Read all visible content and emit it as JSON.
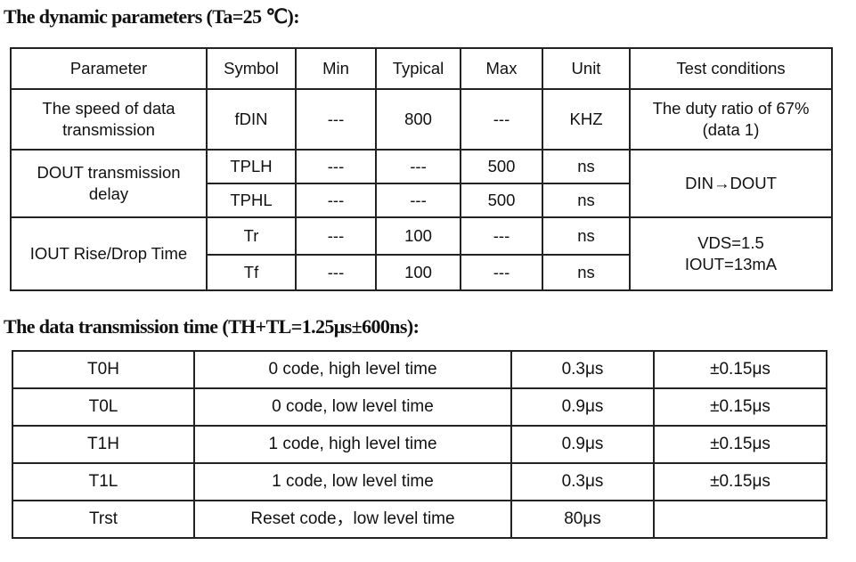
{
  "heading1": "The dynamic parameters (Ta=25 ℃):",
  "heading2": "The data transmission time (TH+TL=1.25μs±600ns):",
  "dyn_table": {
    "headers": [
      "Parameter",
      "Symbol",
      "Min",
      "Typical",
      "Max",
      "Unit",
      "Test conditions"
    ],
    "rows": [
      {
        "param": "The speed of data transmission",
        "symbol": "fDIN",
        "min": "---",
        "typ": "800",
        "max": "---",
        "unit": "KHZ",
        "cond": "The duty ratio of 67% (data 1)"
      },
      {
        "param": "DOUT transmission delay",
        "symbol": "TPLH",
        "min": "---",
        "typ": "---",
        "max": "500",
        "unit": "ns",
        "cond": "DIN→DOUT"
      },
      {
        "symbol": "TPHL",
        "min": "---",
        "typ": "---",
        "max": "500",
        "unit": "ns"
      },
      {
        "param": "IOUT Rise/Drop Time",
        "symbol": "Tr",
        "min": "---",
        "typ": "100",
        "max": "---",
        "unit": "ns",
        "cond1": "VDS=1.5",
        "cond2": "IOUT=13mA"
      },
      {
        "symbol": "Tf",
        "min": "---",
        "typ": "100",
        "max": "---",
        "unit": "ns"
      }
    ]
  },
  "timing_table": {
    "rows": [
      {
        "name": "T0H",
        "desc": "0 code, high level time",
        "value": "0.3μs",
        "tol": "±0.15μs"
      },
      {
        "name": "T0L",
        "desc": "0 code, low level time",
        "value": "0.9μs",
        "tol": "±0.15μs"
      },
      {
        "name": "T1H",
        "desc": "1 code, high level time",
        "value": "0.9μs",
        "tol": "±0.15μs"
      },
      {
        "name": "T1L",
        "desc": "1 code, low level time",
        "value": "0.3μs",
        "tol": "±0.15μs"
      },
      {
        "name": "Trst",
        "desc": "Reset code，low level time",
        "value": "80μs",
        "tol": ""
      }
    ]
  }
}
